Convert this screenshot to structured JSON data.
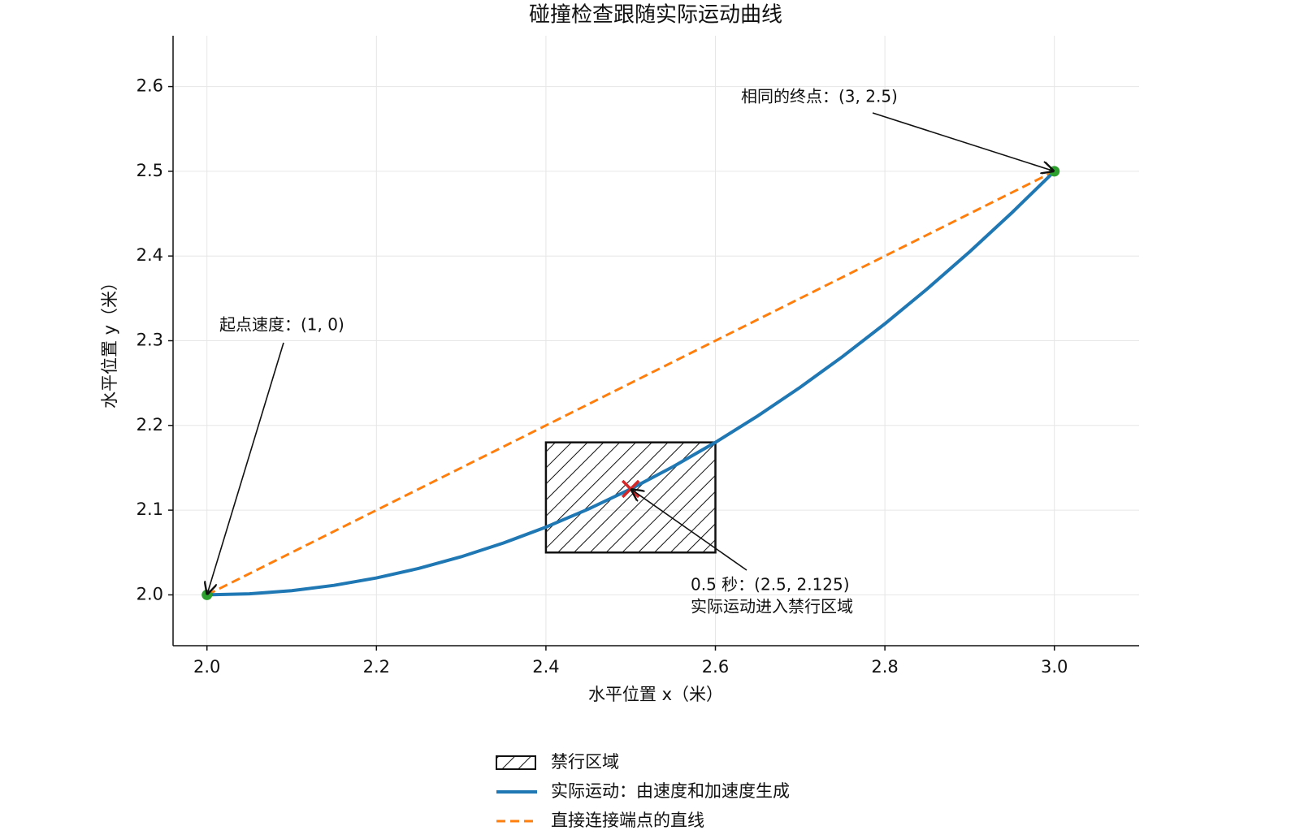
{
  "chart_data": {
    "type": "line",
    "title": "碰撞检查跟随实际运动曲线",
    "xlabel": "水平位置 x（米）",
    "ylabel": "水平位置 y（米）",
    "xlim": [
      1.96,
      3.1
    ],
    "ylim": [
      1.94,
      2.66
    ],
    "xticks": [
      {
        "value": 2.0,
        "label": "2.0"
      },
      2.2,
      2.4,
      2.6,
      2.8,
      {
        "value": 3.0,
        "label": "3.0"
      }
    ],
    "yticks": [
      {
        "value": 2.0,
        "label": "2.0"
      },
      2.1,
      2.2,
      2.3,
      2.4,
      2.5,
      2.6
    ],
    "grid": true,
    "legend": "bottom",
    "region": {
      "name": "禁行区域",
      "x": [
        2.4,
        2.6
      ],
      "y": [
        2.05,
        2.18
      ]
    },
    "series": [
      {
        "name": "实际运动：由速度和加速度生成",
        "color": "#1f77b4",
        "style": "solid",
        "x": [
          2.0,
          2.05,
          2.1,
          2.15,
          2.2,
          2.25,
          2.3,
          2.35,
          2.4,
          2.45,
          2.5,
          2.55,
          2.6,
          2.65,
          2.7,
          2.75,
          2.8,
          2.85,
          2.9,
          2.95,
          3.0
        ],
        "values": [
          2.0,
          2.00125,
          2.005,
          2.01125,
          2.02,
          2.03125,
          2.045,
          2.06125,
          2.08,
          2.10125,
          2.125,
          2.15125,
          2.18,
          2.21125,
          2.245,
          2.28125,
          2.32,
          2.36125,
          2.405,
          2.45125,
          2.5
        ]
      },
      {
        "name": "直接连接端点的直线",
        "color": "#ff7f0e",
        "style": "dashed",
        "x": [
          2.0,
          3.0
        ],
        "values": [
          2.0,
          2.5
        ]
      }
    ],
    "endpoints": {
      "color": "#2ca02c",
      "x": [
        2.0,
        3.0
      ],
      "values": [
        2.0,
        2.5
      ]
    },
    "crossing": {
      "color": "#d62728",
      "x": 2.5,
      "y": 2.125
    },
    "annotations": [
      {
        "lines": [
          "起点速度：(1, 0)"
        ],
        "x": 2.0,
        "y": 2.0
      },
      {
        "lines": [
          "相同的终点：(3, 2.5)"
        ],
        "x": 3.0,
        "y": 2.5
      },
      {
        "lines": [
          "0.5 秒：(2.5, 2.125)",
          "实际运动进入禁行区域"
        ],
        "x": 2.5,
        "y": 2.125
      }
    ]
  }
}
